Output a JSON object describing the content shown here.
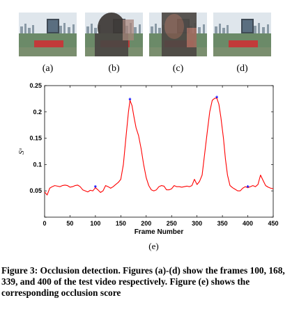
{
  "figures": [
    {
      "label": "(a)",
      "occluded": false
    },
    {
      "label": "(b)",
      "occluded": true
    },
    {
      "label": "(c)",
      "occluded": true
    },
    {
      "label": "(d)",
      "occluded": false
    }
  ],
  "chart_label": "(e)",
  "caption": "Figure 3: Occlusion detection. Figures (a)-(d) show the frames 100, 168, 339, and 400 of the test video respectively. Figure (e) shows the corresponding occlusion score",
  "colors": {
    "line": "#ff0000",
    "marker": "#0000ff"
  },
  "chart_data": {
    "type": "line",
    "xlabel": "Frame Number",
    "ylabel": "Sᵒ",
    "xlim": [
      0,
      450
    ],
    "ylim": [
      0,
      0.25
    ],
    "xticks": [
      0,
      50,
      100,
      150,
      200,
      250,
      300,
      350,
      400,
      450
    ],
    "yticks": [
      0.05,
      0.1,
      0.15,
      0.2,
      0.25
    ],
    "grid": false,
    "series": [
      {
        "x": [
          0,
          5,
          10,
          15,
          20,
          25,
          30,
          35,
          40,
          45,
          50,
          55,
          60,
          65,
          70,
          75,
          80,
          85,
          90,
          95,
          100,
          105,
          110,
          115,
          120,
          125,
          130,
          135,
          140,
          145,
          150,
          155,
          160,
          165,
          168,
          172,
          176,
          180,
          185,
          190,
          195,
          200,
          205,
          210,
          215,
          220,
          225,
          230,
          235,
          240,
          245,
          250,
          255,
          260,
          265,
          270,
          275,
          280,
          285,
          290,
          295,
          300,
          305,
          310,
          315,
          320,
          325,
          330,
          335,
          339,
          343,
          347,
          352,
          356,
          360,
          365,
          370,
          375,
          380,
          385,
          390,
          395,
          400,
          405,
          410,
          415,
          420,
          425,
          430,
          435,
          440,
          445,
          450
        ],
        "y": [
          0.048,
          0.042,
          0.055,
          0.058,
          0.06,
          0.059,
          0.058,
          0.06,
          0.061,
          0.06,
          0.057,
          0.058,
          0.06,
          0.061,
          0.058,
          0.052,
          0.05,
          0.048,
          0.051,
          0.05,
          0.056,
          0.052,
          0.047,
          0.05,
          0.06,
          0.058,
          0.055,
          0.058,
          0.062,
          0.066,
          0.072,
          0.1,
          0.15,
          0.2,
          0.222,
          0.212,
          0.19,
          0.17,
          0.155,
          0.13,
          0.1,
          0.075,
          0.06,
          0.052,
          0.05,
          0.052,
          0.058,
          0.06,
          0.059,
          0.052,
          0.052,
          0.054,
          0.06,
          0.058,
          0.058,
          0.057,
          0.058,
          0.059,
          0.058,
          0.06,
          0.072,
          0.062,
          0.068,
          0.08,
          0.12,
          0.16,
          0.2,
          0.222,
          0.226,
          0.226,
          0.215,
          0.19,
          0.15,
          0.11,
          0.08,
          0.06,
          0.056,
          0.053,
          0.05,
          0.05,
          0.055,
          0.058,
          0.056,
          0.058,
          0.06,
          0.058,
          0.062,
          0.08,
          0.07,
          0.06,
          0.057,
          0.055,
          0.054
        ]
      }
    ],
    "markers": [
      {
        "x": 100,
        "y": 0.056
      },
      {
        "x": 168,
        "y": 0.222
      },
      {
        "x": 339,
        "y": 0.226
      },
      {
        "x": 400,
        "y": 0.056
      }
    ]
  }
}
